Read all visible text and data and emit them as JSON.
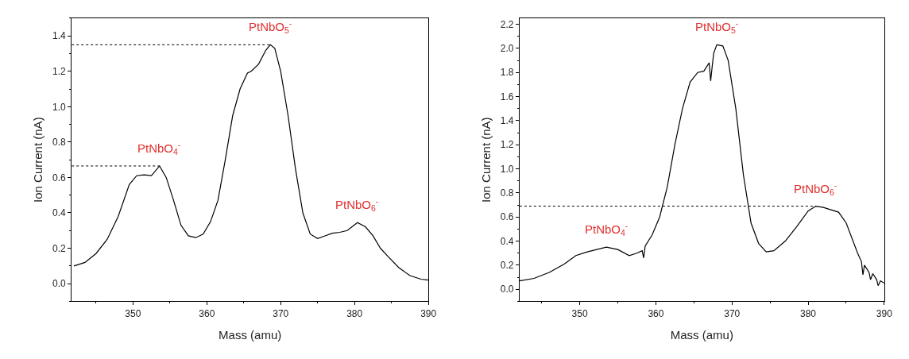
{
  "chart_data": [
    {
      "type": "line",
      "xlabel": "Mass (amu)",
      "ylabel": "Ion Current (nA)",
      "xlim": [
        341.7,
        390
      ],
      "ylim": [
        -0.1,
        1.5
      ],
      "xticks": [
        350,
        360,
        370,
        380,
        390
      ],
      "yticks": [
        {
          "value": 0,
          "label": "0.0"
        },
        {
          "value": 0.2,
          "label": "0.2"
        },
        {
          "value": 0.4,
          "label": "0.4"
        },
        {
          "value": 0.6,
          "label": "0.6"
        },
        {
          "value": 0.8,
          "label": "0.8"
        },
        {
          "value": 1.0,
          "label": "1.0"
        },
        {
          "value": 1.2,
          "label": "1.2"
        },
        {
          "value": 1.4,
          "label": "1.4"
        }
      ],
      "series": [
        {
          "color": "#000000",
          "line_style": "solid",
          "x": [
            342,
            343.5,
            345,
            346.5,
            348,
            349.5,
            350.5,
            351.5,
            352.5,
            353.6,
            354.5,
            355.5,
            356.5,
            357.5,
            358.5,
            359.5,
            360.5,
            361.5,
            362.5,
            363.5,
            364.5,
            365.5,
            366,
            367,
            368,
            368.6,
            369.2,
            370,
            371,
            372,
            373,
            374,
            375,
            376,
            377,
            378,
            379,
            380.4,
            381.5,
            382.5,
            383.5,
            384.5,
            386,
            387.5,
            389,
            390
          ],
          "values": [
            0.1,
            0.12,
            0.17,
            0.25,
            0.38,
            0.56,
            0.61,
            0.615,
            0.61,
            0.665,
            0.6,
            0.47,
            0.33,
            0.27,
            0.26,
            0.28,
            0.35,
            0.47,
            0.7,
            0.95,
            1.1,
            1.19,
            1.2,
            1.24,
            1.32,
            1.35,
            1.33,
            1.2,
            0.95,
            0.65,
            0.4,
            0.28,
            0.255,
            0.27,
            0.285,
            0.29,
            0.3,
            0.345,
            0.32,
            0.27,
            0.2,
            0.155,
            0.09,
            0.045,
            0.025,
            0.02
          ]
        },
        {
          "color": "#000000",
          "line_style": "dotted",
          "x": [
            341.7,
            353.6
          ],
          "values": [
            0.665,
            0.665
          ]
        },
        {
          "color": "#000000",
          "line_style": "dotted",
          "x": [
            341.7,
            368.6
          ],
          "values": [
            1.35,
            1.35
          ]
        }
      ],
      "annotations": [
        {
          "text": "PtNbO$_{4}$$^{-}$",
          "x": 353.6,
          "y": 0.665
        },
        {
          "text": "PtNbO$_{5}$$^{-}$",
          "x": 368.6,
          "y": 1.35
        },
        {
          "text": "PtNbO$_{6}$$^{-}$",
          "x": 380.4,
          "y": 0.345
        }
      ]
    },
    {
      "type": "line",
      "xlabel": "Mass (amu)",
      "ylabel": "Ion Current (nA)",
      "xlim": [
        342.1,
        390
      ],
      "ylim": [
        -0.1,
        2.25
      ],
      "xticks": [
        350,
        360,
        370,
        380,
        390
      ],
      "yticks": [
        {
          "value": 0,
          "label": "0.0"
        },
        {
          "value": 0.2,
          "label": "0.2"
        },
        {
          "value": 0.4,
          "label": "0.4"
        },
        {
          "value": 0.6,
          "label": "0.6"
        },
        {
          "value": 0.8,
          "label": "0.8"
        },
        {
          "value": 1.0,
          "label": "1.0"
        },
        {
          "value": 1.2,
          "label": "1.2"
        },
        {
          "value": 1.4,
          "label": "1.4"
        },
        {
          "value": 1.6,
          "label": "1.6"
        },
        {
          "value": 1.8,
          "label": "1.8"
        },
        {
          "value": 2.0,
          "label": "2.0"
        },
        {
          "value": 2.2,
          "label": "2.2"
        }
      ],
      "series": [
        {
          "color": "#000000",
          "line_style": "solid",
          "x": [
            342.1,
            344,
            346,
            348,
            349.5,
            351,
            353.5,
            355,
            356.5,
            357.5,
            358.2,
            358.4,
            358.6,
            359.5,
            360.5,
            361.5,
            362.5,
            363.5,
            364.5,
            365.5,
            366.3,
            367,
            367.2,
            367.4,
            367.6,
            368,
            368.8,
            369.5,
            370.5,
            371.5,
            372.5,
            373.5,
            374.5,
            375.5,
            377,
            378.5,
            380,
            381,
            382,
            383,
            384,
            385,
            386.5,
            387,
            387.2,
            387.4,
            388,
            388.2,
            388.5,
            389,
            389.2,
            389.5,
            390
          ],
          "values": [
            0.07,
            0.09,
            0.14,
            0.21,
            0.28,
            0.31,
            0.35,
            0.33,
            0.28,
            0.3,
            0.32,
            0.26,
            0.36,
            0.45,
            0.6,
            0.85,
            1.2,
            1.5,
            1.72,
            1.8,
            1.81,
            1.88,
            1.73,
            1.85,
            1.96,
            2.03,
            2.02,
            1.9,
            1.5,
            0.95,
            0.55,
            0.38,
            0.31,
            0.32,
            0.4,
            0.52,
            0.65,
            0.69,
            0.68,
            0.66,
            0.64,
            0.55,
            0.3,
            0.23,
            0.12,
            0.2,
            0.14,
            0.08,
            0.13,
            0.08,
            0.03,
            0.07,
            0.05
          ]
        },
        {
          "color": "#000000",
          "line_style": "dotted",
          "x": [
            342.1,
            381
          ],
          "values": [
            0.69,
            0.69
          ]
        }
      ],
      "annotations": [
        {
          "text": "PtNbO$_{4}$$^{-}$",
          "x": 353.5,
          "y": 0.35
        },
        {
          "text": "PtNbO$_{5}$$^{-}$",
          "x": 368,
          "y": 2.03
        },
        {
          "text": "PtNbO$_{6}$$^{-}$",
          "x": 381,
          "y": 0.69
        }
      ]
    }
  ]
}
